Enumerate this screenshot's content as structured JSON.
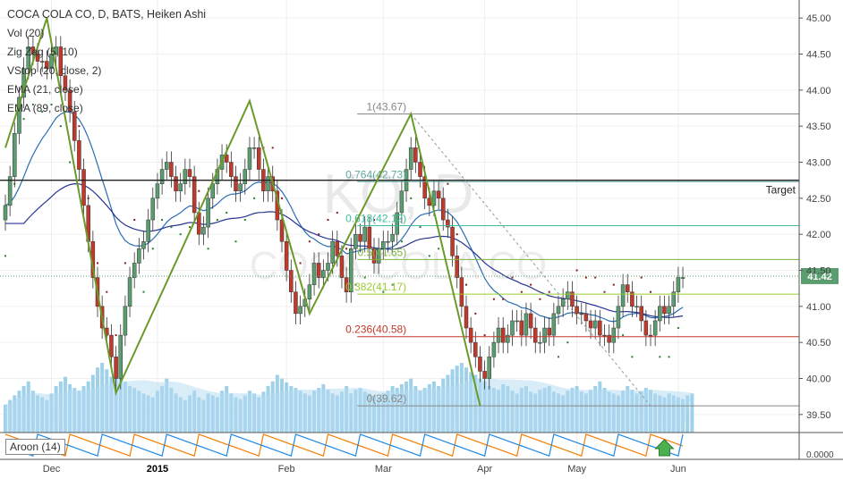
{
  "header": {
    "title": "COCA COLA CO, D, BATS, Heiken Ashi",
    "indicators": [
      "Vol (20)",
      "Zig Zag (5, 10)",
      "VStop (20, close, 2)",
      "EMA (21, close)",
      "EMA (89, close)"
    ]
  },
  "watermark": {
    "symbol": "KO, D",
    "name": "COCA COLA CO"
  },
  "colors": {
    "up": "#5a9e6f",
    "down": "#c0392b",
    "zigzag": "#6a9a2a",
    "ema21": "#2a6db5",
    "ema89": "#283593",
    "volume": "#8ec9e8",
    "aroon_up": "#f57c00",
    "aroon_down": "#1e88e5",
    "price_badge": "#5a9e6f"
  },
  "chart_data": {
    "type": "candlestick",
    "price_axis": {
      "ylim": [
        39.25,
        45.25
      ],
      "ticks": [
        "45.00",
        "44.50",
        "44.00",
        "43.50",
        "43.00",
        "42.50",
        "42.00",
        "41.50",
        "41.00",
        "40.50",
        "40.00",
        "39.50"
      ]
    },
    "time_axis": {
      "labels": [
        "Dec",
        "2015",
        "Feb",
        "Mar",
        "Apr",
        "May",
        "Jun"
      ]
    },
    "last_price": "41.42",
    "target": {
      "label": "Target",
      "value": 42.75
    },
    "fibonacci": [
      {
        "label": "1(43.67)",
        "value": 43.67
      },
      {
        "label": "0.764(42.73)",
        "value": 42.73
      },
      {
        "label": "0.618(42.12)",
        "value": 42.12
      },
      {
        "label": "0.5(41.65)",
        "value": 41.65
      },
      {
        "label": "0.382(41.17)",
        "value": 41.17
      },
      {
        "label": "0.236(40.58)",
        "value": 40.58
      },
      {
        "label": "0(39.62)",
        "value": 39.62
      }
    ],
    "zigzag": [
      [
        0,
        43.2
      ],
      [
        9,
        45.0
      ],
      [
        24,
        39.8
      ],
      [
        53,
        43.85
      ],
      [
        66,
        40.9
      ],
      [
        88,
        43.67
      ],
      [
        103,
        39.62
      ]
    ],
    "trendline": [
      [
        88,
        43.67
      ],
      [
        140,
        39.62
      ]
    ],
    "closes": [
      42.4,
      42.8,
      43.4,
      43.9,
      44.3,
      44.6,
      44.5,
      44.4,
      44.4,
      44.3,
      44.5,
      44.6,
      44.2,
      44.0,
      43.7,
      43.3,
      42.9,
      42.4,
      41.9,
      41.4,
      41.0,
      40.7,
      40.6,
      40.3,
      40.0,
      40.6,
      41.0,
      41.4,
      41.6,
      41.8,
      41.9,
      42.2,
      42.5,
      42.7,
      42.9,
      43.0,
      42.8,
      42.6,
      42.7,
      42.9,
      42.8,
      42.3,
      42.0,
      42.1,
      42.5,
      42.7,
      42.9,
      43.1,
      43.0,
      42.8,
      42.6,
      42.7,
      42.9,
      43.2,
      43.2,
      42.9,
      42.6,
      42.8,
      42.6,
      42.2,
      41.9,
      41.5,
      41.2,
      40.9,
      41.0,
      41.1,
      41.3,
      41.6,
      41.4,
      41.5,
      41.6,
      41.9,
      41.7,
      41.4,
      41.2,
      41.8,
      42.0,
      41.9,
      42.1,
      41.8,
      41.6,
      41.8,
      41.9,
      41.9,
      42.0,
      42.3,
      42.6,
      42.9,
      43.2,
      43.0,
      42.8,
      42.5,
      42.4,
      42.6,
      42.5,
      42.2,
      42.1,
      41.7,
      41.4,
      41.0,
      40.7,
      40.5,
      40.3,
      40.1,
      40.0,
      40.3,
      40.5,
      40.7,
      40.5,
      40.6,
      40.8,
      40.8,
      40.6,
      40.9,
      40.7,
      40.5,
      40.5,
      40.7,
      40.6,
      40.9,
      41.0,
      41.1,
      41.2,
      41.0,
      40.9,
      40.9,
      40.8,
      40.7,
      40.8,
      40.6,
      40.6,
      40.5,
      40.7,
      41.0,
      41.3,
      41.2,
      41.0,
      41.0,
      40.8,
      40.6,
      40.6,
      40.8,
      41.0,
      40.9,
      41.0,
      41.2,
      41.4,
      41.4
    ],
    "volume": [
      0.3,
      0.35,
      0.4,
      0.45,
      0.5,
      0.55,
      0.45,
      0.4,
      0.38,
      0.35,
      0.42,
      0.5,
      0.55,
      0.6,
      0.52,
      0.48,
      0.45,
      0.5,
      0.55,
      0.62,
      0.7,
      0.75,
      0.68,
      0.6,
      0.72,
      0.65,
      0.55,
      0.5,
      0.48,
      0.45,
      0.42,
      0.4,
      0.38,
      0.45,
      0.5,
      0.58,
      0.48,
      0.42,
      0.38,
      0.35,
      0.4,
      0.45,
      0.38,
      0.35,
      0.42,
      0.4,
      0.38,
      0.45,
      0.5,
      0.42,
      0.38,
      0.36,
      0.4,
      0.45,
      0.42,
      0.38,
      0.44,
      0.5,
      0.55,
      0.62,
      0.58,
      0.54,
      0.5,
      0.48,
      0.45,
      0.42,
      0.4,
      0.45,
      0.48,
      0.52,
      0.46,
      0.42,
      0.4,
      0.44,
      0.5,
      0.42,
      0.46,
      0.48,
      0.44,
      0.42,
      0.4,
      0.38,
      0.42,
      0.45,
      0.5,
      0.48,
      0.52,
      0.55,
      0.58,
      0.5,
      0.45,
      0.48,
      0.52,
      0.55,
      0.5,
      0.58,
      0.62,
      0.68,
      0.72,
      0.75,
      0.7,
      0.65,
      0.62,
      0.58,
      0.55,
      0.5,
      0.48,
      0.46,
      0.52,
      0.5,
      0.45,
      0.42,
      0.48,
      0.5,
      0.44,
      0.42,
      0.46,
      0.48,
      0.5,
      0.44,
      0.42,
      0.4,
      0.45,
      0.48,
      0.5,
      0.44,
      0.42,
      0.46,
      0.5,
      0.55,
      0.48,
      0.44,
      0.42,
      0.4,
      0.45,
      0.5,
      0.46,
      0.42,
      0.44,
      0.48,
      0.46,
      0.42,
      0.4,
      0.38,
      0.42,
      0.4,
      0.38,
      0.36,
      0.4,
      0.42
    ],
    "aroon": {
      "label": "Aroon (14)",
      "axis_label": "0.0000"
    }
  }
}
